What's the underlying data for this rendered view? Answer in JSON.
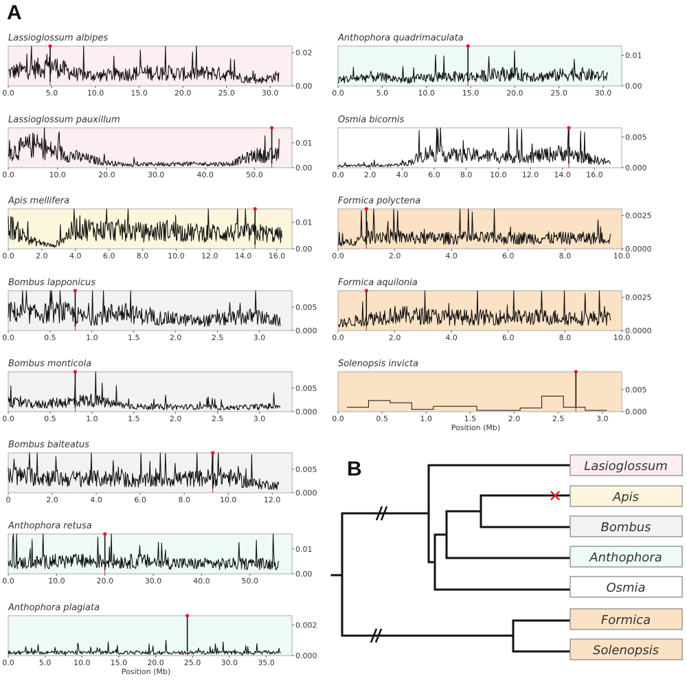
{
  "figure": {
    "panel_a_label": "A",
    "panel_b_label": "B",
    "xlabel": "Position (Mb)"
  },
  "colors": {
    "Lasioglossum": "#fdeef1",
    "Apis": "#fdf6dc",
    "Bombus": "#f2f2f2",
    "Anthophora": "#eefaf4",
    "Osmia": "#ffffff",
    "Formica": "#fbe2c4",
    "Solenopsis": "#fbe2c4",
    "peak": "#e8142c"
  },
  "chart_data": [
    {
      "type": "line",
      "title": "Lassioglossum albipes",
      "genus": "Lasioglossum",
      "xlim": [
        0,
        32.5
      ],
      "ylim": [
        0,
        0.024
      ],
      "xticks": [
        "0.0",
        "5.0",
        "10.0",
        "15.0",
        "20.0",
        "25.0",
        "30.0"
      ],
      "xtick_values": [
        0,
        5,
        10,
        15,
        20,
        25,
        30
      ],
      "yticks": [
        "0.02",
        "0.00"
      ],
      "ytick_values": [
        0.02,
        0
      ],
      "extent": 31,
      "peak": 4.8,
      "profile": [
        0.008,
        0.01,
        0.012,
        0.007,
        0.006,
        0.007,
        0.008,
        0.008,
        0.007,
        0.008,
        0.006,
        0.003,
        0.006
      ]
    },
    {
      "type": "line",
      "title": "Lassioglossum pauxillum",
      "genus": "Lasioglossum",
      "xlim": [
        0,
        57.6
      ],
      "ylim": [
        0,
        0.016
      ],
      "xticks": [
        "0.0",
        "10.0",
        "20.0",
        "30.0",
        "40.0",
        "50.0"
      ],
      "xtick_values": [
        0,
        10,
        20,
        30,
        40,
        50
      ],
      "yticks": [
        "0.01",
        "0.00"
      ],
      "ytick_values": [
        0.01,
        0
      ],
      "extent": 55,
      "peak": 53.5,
      "profile": [
        0.006,
        0.009,
        0.006,
        0.004,
        0.002,
        0.001,
        0.0015,
        0.0015,
        0.0015,
        0.0015,
        0.005,
        0.005
      ]
    },
    {
      "type": "line",
      "title": "Apis mellifera",
      "genus": "Apis",
      "xlim": [
        0,
        16.9
      ],
      "ylim": [
        0,
        0.015
      ],
      "xticks": [
        "0.0",
        "2.0",
        "4.0",
        "6.0",
        "8.0",
        "10.0",
        "12.0",
        "14.0",
        "16.0"
      ],
      "xtick_values": [
        0,
        2,
        4,
        6,
        8,
        10,
        12,
        14,
        16
      ],
      "yticks": [
        "0.01",
        "0.00"
      ],
      "ytick_values": [
        0.01,
        0
      ],
      "extent": 16.3,
      "peak": 14.7,
      "profile": [
        0.009,
        0.003,
        0.001,
        0.008,
        0.007,
        0.007,
        0.006,
        0.007,
        0.006,
        0.006,
        0.006,
        0.006,
        0.005
      ]
    },
    {
      "type": "line",
      "title": "Bombus lapponicus",
      "genus": "Bombus",
      "xlim": [
        0,
        3.39
      ],
      "ylim": [
        0,
        0.0085
      ],
      "xticks": [
        "0.0",
        "0.5",
        "1.0",
        "1.5",
        "2.0",
        "2.5",
        "3.0"
      ],
      "xtick_values": [
        0,
        0.5,
        1,
        1.5,
        2,
        2.5,
        3
      ],
      "yticks": [
        "0.005",
        "0.000"
      ],
      "ytick_values": [
        0.005,
        0
      ],
      "extent": 3.25,
      "peak": 0.8,
      "profile": [
        0.004,
        0.0035,
        0.004,
        0.0025,
        0.004,
        0.003,
        0.0025,
        0.002,
        0.0025,
        0.003,
        0.002
      ]
    },
    {
      "type": "line",
      "title": "Bombus monticola",
      "genus": "Bombus",
      "xlim": [
        0,
        3.39
      ],
      "ylim": [
        0,
        0.0085
      ],
      "xticks": [
        "0.0",
        "0.5",
        "1.0",
        "1.5",
        "2.0",
        "2.5",
        "3.0"
      ],
      "xtick_values": [
        0,
        0.5,
        1,
        1.5,
        2,
        2.5,
        3
      ],
      "yticks": [
        "0.005",
        "0.000"
      ],
      "ytick_values": [
        0.005,
        0
      ],
      "extent": 3.25,
      "peak": 0.8,
      "profile": [
        0.002,
        0.0015,
        0.002,
        0.0025,
        0.0015,
        0.001,
        0.001,
        0.001,
        0.0008,
        0.001,
        0.0012
      ]
    },
    {
      "type": "line",
      "title": "Bombus balteatus",
      "genus": "Bombus",
      "xlim": [
        0,
        12.9
      ],
      "ylim": [
        0,
        0.0085
      ],
      "xticks": [
        "0",
        "2.0",
        "4.0",
        "6.0",
        "8.0",
        "10.0",
        "12.0"
      ],
      "xtick_values": [
        0,
        2,
        4,
        6,
        8,
        10,
        12
      ],
      "yticks": [
        "0.005",
        "0.000"
      ],
      "ytick_values": [
        0.005,
        0
      ],
      "extent": 12.3,
      "peak": 9.3,
      "profile": [
        0.0035,
        0.0035,
        0.003,
        0.003,
        0.003,
        0.0025,
        0.003,
        0.003,
        0.0035,
        0.002,
        0.0015
      ]
    },
    {
      "type": "line",
      "title": "Anthophora retusa",
      "genus": "Anthophora",
      "xlim": [
        0,
        58.7
      ],
      "ylim": [
        0,
        0.016
      ],
      "xticks": [
        "0.0",
        "10.0",
        "20.0",
        "30.0",
        "40.0",
        "50.0"
      ],
      "xtick_values": [
        0,
        10,
        20,
        30,
        40,
        50
      ],
      "yticks": [
        "0.01",
        "0.00"
      ],
      "ytick_values": [
        0.01,
        0
      ],
      "extent": 56,
      "peak": 20.0,
      "profile": [
        0.004,
        0.005,
        0.005,
        0.005,
        0.004,
        0.004,
        0.004
      ]
    },
    {
      "type": "line",
      "title": "Anthophora plagiata",
      "genus": "Anthophora",
      "xlim": [
        0,
        38.5
      ],
      "ylim": [
        0,
        0.0026
      ],
      "xticks": [
        "0.0",
        "5.0",
        "10.0",
        "15.0",
        "20.0",
        "25.0",
        "30.0",
        "35.0"
      ],
      "xtick_values": [
        0,
        5,
        10,
        15,
        20,
        25,
        30,
        35
      ],
      "yticks": [
        "0.002",
        "0.000"
      ],
      "ytick_values": [
        0.002,
        0
      ],
      "extent": 37,
      "peak": 24.3,
      "profile": [
        0.0002,
        0.0002,
        0.0002,
        0.0002,
        0.0002,
        0.0002,
        0.0002
      ],
      "xlabel": "Position (Mb)"
    },
    {
      "type": "line",
      "title": "Anthophora quadrimaculata",
      "genus": "Anthophora",
      "xlim": [
        0,
        32.1
      ],
      "ylim": [
        0,
        0.013
      ],
      "xticks": [
        "0.0",
        "5.0",
        "10.0",
        "15.0",
        "20.0",
        "25.0",
        "30.0"
      ],
      "xtick_values": [
        0,
        5,
        10,
        15,
        20,
        25,
        30
      ],
      "yticks": [
        "0.01",
        "0.00"
      ],
      "ytick_values": [
        0.01,
        0
      ],
      "extent": 30.5,
      "peak": 14.7,
      "profile": [
        0.002,
        0.003,
        0.002,
        0.003,
        0.003,
        0.004,
        0.003,
        0.004,
        0.003
      ]
    },
    {
      "type": "line",
      "title": "Osmia bicornis",
      "genus": "Osmia",
      "xlim": [
        0,
        17.7
      ],
      "ylim": [
        0,
        0.0065
      ],
      "xticks": [
        "0.0",
        "2.0",
        "4.0",
        "6.0",
        "8.0",
        "10.0",
        "12.0",
        "14.0",
        "16.0"
      ],
      "xtick_values": [
        0,
        2,
        4,
        6,
        8,
        10,
        12,
        14,
        16
      ],
      "yticks": [
        "0.005",
        "0.000"
      ],
      "ytick_values": [
        0.005,
        0
      ],
      "extent": 17,
      "peak": 14.4,
      "profile": [
        0.0003,
        0.0003,
        0.0003,
        0.0006,
        0.0025,
        0.002,
        0.002,
        0.0018,
        0.0018,
        0.002,
        0.0025,
        0.0015,
        0.0008
      ]
    },
    {
      "type": "line",
      "title": "Formica polyctena",
      "genus": "Formica",
      "xlim": [
        0,
        10
      ],
      "ylim": [
        0,
        0.003
      ],
      "xticks": [
        "0.0",
        "2.0",
        "4.0",
        "6.0",
        "8.0",
        "10.0"
      ],
      "xtick_values": [
        0,
        2,
        4,
        6,
        8,
        10
      ],
      "yticks": [
        "0.0025",
        "0.0000"
      ],
      "ytick_values": [
        0.0025,
        0
      ],
      "extent": 9.6,
      "peak": 1.0,
      "profile": [
        0.0003,
        0.001,
        0.0008,
        0.0008,
        0.0008,
        0.0008,
        0.0008,
        0.0008
      ]
    },
    {
      "type": "line",
      "title": "Formica aquilonia",
      "genus": "Formica",
      "xlim": [
        0,
        10
      ],
      "ylim": [
        0,
        0.003
      ],
      "xticks": [
        "0.0",
        "2.0",
        "4.0",
        "6.0",
        "8.0",
        "10.0"
      ],
      "xtick_values": [
        0,
        2,
        4,
        6,
        8,
        10
      ],
      "yticks": [
        "0.0025",
        "0.0000"
      ],
      "ytick_values": [
        0.0025,
        0
      ],
      "extent": 9.6,
      "peak": 1.0,
      "profile": [
        0.0005,
        0.0012,
        0.001,
        0.001,
        0.001,
        0.0009
      ]
    },
    {
      "type": "line",
      "title": "Solenopsis invicta",
      "genus": "Solenopsis",
      "xlim": [
        0,
        3.22
      ],
      "ylim": [
        0,
        0.009
      ],
      "xticks": [
        "0.0",
        "0.5",
        "1.0",
        "1.5",
        "2.0",
        "2.5",
        "3.0"
      ],
      "xtick_values": [
        0,
        0.5,
        1,
        1.5,
        2,
        2.5,
        3
      ],
      "yticks": [
        "0.005",
        "0.000"
      ],
      "ytick_values": [
        0.005,
        0
      ],
      "extent": 3.05,
      "start": 0.1,
      "peak": 2.7,
      "style": "step",
      "profile": [
        0.001,
        0.0025,
        0.002,
        0.0005,
        0.0012,
        0.0012,
        0.0003,
        0.0003,
        0.0008,
        0.0035,
        0.001,
        0.0003
      ],
      "xlabel": "Position (Mb)"
    }
  ],
  "tree": {
    "leaves": [
      "Lasioglossum",
      "Apis",
      "Bombus",
      "Anthophora",
      "Osmia",
      "Formica",
      "Solenopsis"
    ],
    "loss_marker": {
      "leaf": "Apis",
      "symbol": "✕"
    }
  }
}
